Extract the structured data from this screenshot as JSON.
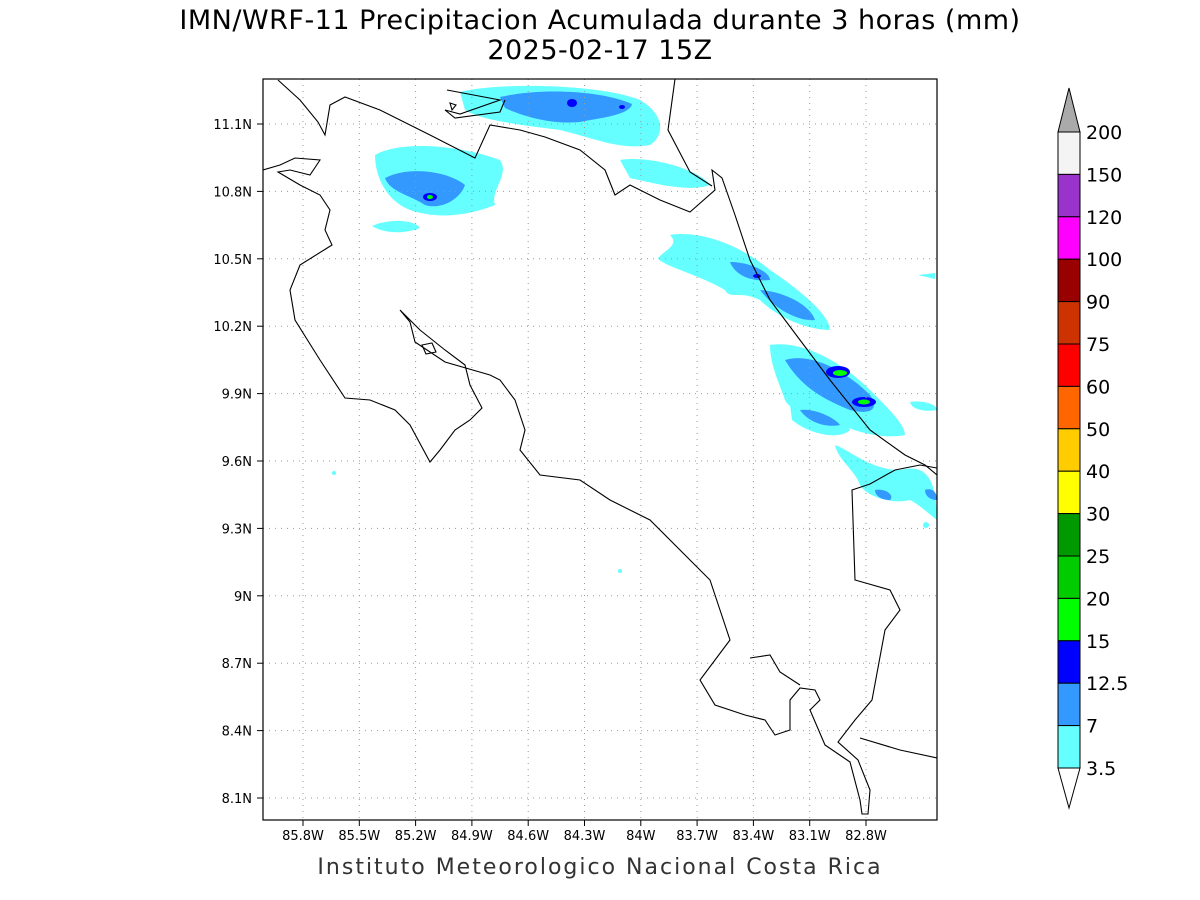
{
  "title": {
    "line1": "IMN/WRF-11 Precipitacion Acumulada durante 3 horas (mm)",
    "line2": "2025-02-17 15Z"
  },
  "footer": "Instituto Meteorologico Nacional Costa Rica",
  "map": {
    "lon_ticks": [
      "85.8W",
      "85.5W",
      "85.2W",
      "84.9W",
      "84.6W",
      "84.3W",
      "84W",
      "83.7W",
      "83.4W",
      "83.1W",
      "82.8W"
    ],
    "lat_ticks": [
      "11.1N",
      "10.8N",
      "10.5N",
      "10.2N",
      "9.9N",
      "9.6N",
      "9.3N",
      "9N",
      "8.7N",
      "8.4N",
      "8.1N"
    ]
  },
  "colorbar": {
    "labels": [
      "200",
      "150",
      "120",
      "100",
      "90",
      "75",
      "60",
      "50",
      "40",
      "30",
      "25",
      "20",
      "15",
      "12.5",
      "7",
      "3.5"
    ],
    "colors": [
      "#f4f4f4",
      "#9933cc",
      "#ff00ff",
      "#990000",
      "#cc3300",
      "#ff0000",
      "#ff6600",
      "#ffcc00",
      "#ffff00",
      "#009900",
      "#00cc00",
      "#00ff00",
      "#0000ff",
      "#3399ff",
      "#66ffff"
    ],
    "over_color": "#aaaaaa",
    "under_color": "#ffffff"
  }
}
